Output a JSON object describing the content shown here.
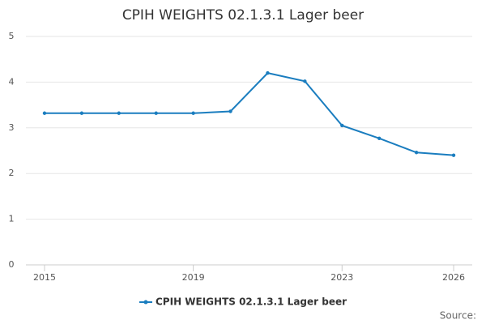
{
  "chart_data": {
    "type": "line",
    "title": "CPIH WEIGHTS 02.1.3.1 Lager beer",
    "x": [
      2015,
      2016,
      2017,
      2018,
      2019,
      2020,
      2021,
      2022,
      2023,
      2024,
      2025,
      2026
    ],
    "series": [
      {
        "name": "CPIH WEIGHTS 02.1.3.1 Lager beer",
        "color": "#1a7dbf",
        "values": [
          3.32,
          3.32,
          3.32,
          3.32,
          3.32,
          3.36,
          4.2,
          4.02,
          3.05,
          2.77,
          2.46,
          2.4
        ]
      }
    ],
    "xlim": [
      2014.5,
      2026.5
    ],
    "xticks": [
      2015,
      2019,
      2023,
      2026
    ],
    "ylim": [
      0,
      5
    ],
    "yticks": [
      0,
      1,
      2,
      3,
      4,
      5
    ],
    "grid": true,
    "legend": "bottom",
    "source": "Source:"
  }
}
